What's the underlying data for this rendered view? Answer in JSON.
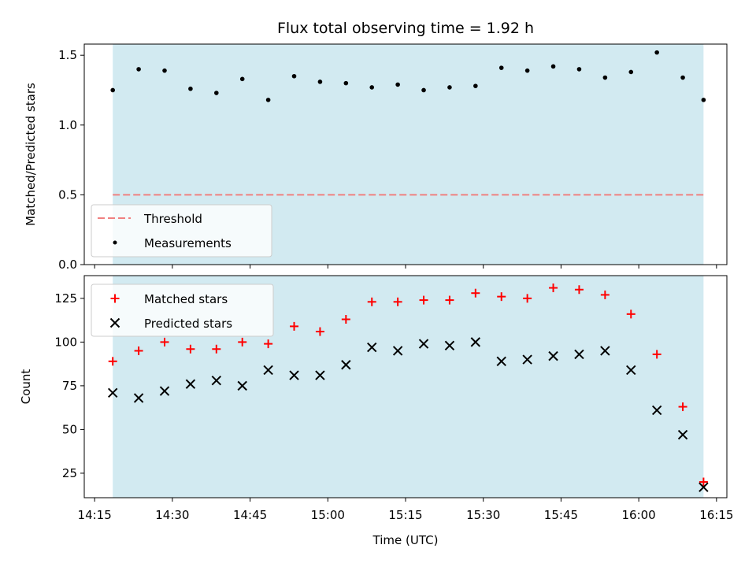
{
  "title": "Flux total observing time = 1.92 h",
  "colors": {
    "band": "#add8e6",
    "threshold": "#f08080",
    "matched": "#ff0000",
    "predicted": "#000000",
    "ratio": "#000000"
  },
  "chart_data": [
    {
      "type": "scatter",
      "panel": "top",
      "title": "Flux total observing time = 1.92 h",
      "xlabel": "",
      "ylabel": "Matched/Predicted stars",
      "xlim_minutes": [
        853,
        977
      ],
      "ylim": [
        0,
        1.58
      ],
      "yticks": [
        0.0,
        0.5,
        1.0,
        1.5
      ],
      "ytick_labels": [
        "0.0",
        "0.5",
        "1.0",
        "1.5"
      ],
      "shaded_span_minutes": [
        858.5,
        972.5
      ],
      "threshold": {
        "name": "Threshold",
        "value": 0.5,
        "x_range_minutes": [
          858.5,
          972.5
        ],
        "style": "dashed"
      },
      "series": [
        {
          "name": "Measurements",
          "marker": "dot",
          "x_minutes": [
            858.5,
            863.5,
            868.5,
            873.5,
            878.5,
            883.5,
            888.5,
            893.5,
            898.5,
            903.5,
            908.5,
            913.5,
            918.5,
            923.5,
            928.5,
            933.5,
            938.5,
            943.5,
            948.5,
            953.5,
            958.5,
            963.5,
            968.5,
            972.5
          ],
          "values": [
            1.25,
            1.4,
            1.39,
            1.26,
            1.23,
            1.33,
            1.18,
            1.35,
            1.31,
            1.3,
            1.27,
            1.29,
            1.25,
            1.27,
            1.28,
            1.41,
            1.39,
            1.42,
            1.4,
            1.34,
            1.38,
            1.52,
            1.34,
            1.18
          ]
        }
      ],
      "legend": {
        "location": "lower-left",
        "entries": [
          "Threshold",
          "Measurements"
        ]
      }
    },
    {
      "type": "scatter",
      "panel": "bottom",
      "xlabel": "Time (UTC)",
      "ylabel": "Count",
      "xlim_minutes": [
        853,
        977
      ],
      "ylim": [
        11,
        138
      ],
      "xticks_minutes": [
        855,
        870,
        885,
        900,
        915,
        930,
        945,
        960,
        975
      ],
      "xtick_labels": [
        "14:15",
        "14:30",
        "14:45",
        "15:00",
        "15:15",
        "15:30",
        "15:45",
        "16:00",
        "16:15"
      ],
      "yticks": [
        25,
        50,
        75,
        100,
        125
      ],
      "ytick_labels": [
        "25",
        "50",
        "75",
        "100",
        "125"
      ],
      "shaded_span_minutes": [
        858.5,
        972.5
      ],
      "series": [
        {
          "name": "Matched stars",
          "marker": "plus",
          "x_minutes": [
            858.5,
            863.5,
            868.5,
            873.5,
            878.5,
            883.5,
            888.5,
            893.5,
            898.5,
            903.5,
            908.5,
            913.5,
            918.5,
            923.5,
            928.5,
            933.5,
            938.5,
            943.5,
            948.5,
            953.5,
            958.5,
            963.5,
            968.5,
            972.5
          ],
          "values": [
            89,
            95,
            100,
            96,
            96,
            100,
            99,
            109,
            106,
            113,
            123,
            123,
            124,
            124,
            128,
            126,
            125,
            131,
            130,
            127,
            116,
            93,
            63,
            20
          ]
        },
        {
          "name": "Predicted stars",
          "marker": "x",
          "x_minutes": [
            858.5,
            863.5,
            868.5,
            873.5,
            878.5,
            883.5,
            888.5,
            893.5,
            898.5,
            903.5,
            908.5,
            913.5,
            918.5,
            923.5,
            928.5,
            933.5,
            938.5,
            943.5,
            948.5,
            953.5,
            958.5,
            963.5,
            968.5,
            972.5
          ],
          "values": [
            71,
            68,
            72,
            76,
            78,
            75,
            84,
            81,
            81,
            87,
            97,
            95,
            99,
            98,
            100,
            89,
            90,
            92,
            93,
            95,
            84,
            61,
            47,
            17
          ]
        }
      ],
      "legend": {
        "location": "upper-left",
        "entries": [
          "Matched stars",
          "Predicted stars"
        ]
      }
    }
  ]
}
